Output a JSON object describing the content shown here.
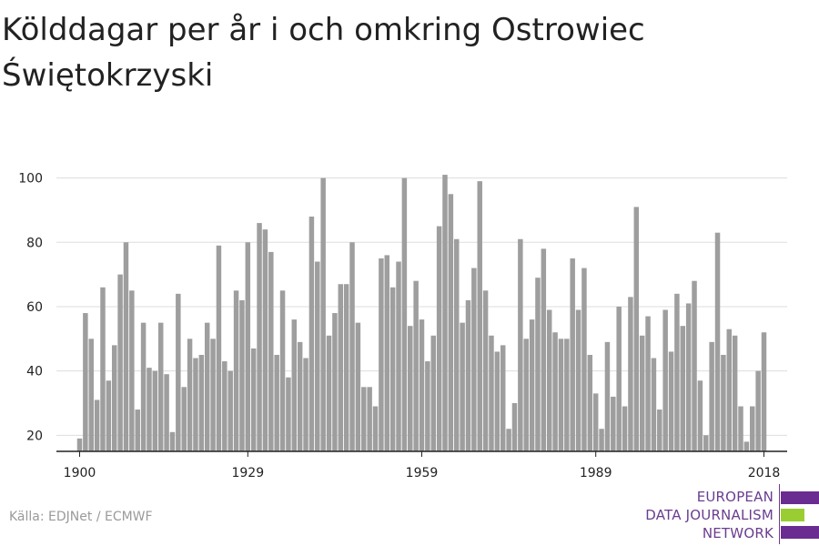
{
  "title": "Kölddagar per år i och omkring Ostrowiec Świętokrzyski",
  "source": "Källa: EDJNet / ECMWF",
  "logo": {
    "lines": [
      "EUROPEAN",
      "DATA JOURNALISM",
      "NETWORK"
    ],
    "purple": "#6a2c91",
    "green": "#9acd32"
  },
  "colors": {
    "bar": "#9e9e9e",
    "grid": "#dddddd",
    "axis": "#222222"
  },
  "chart_data": {
    "type": "bar",
    "title": "Kölddagar per år i och omkring Ostrowiec Świętokrzyski",
    "xlabel": "",
    "ylabel": "",
    "ylim": [
      15,
      103
    ],
    "xlim": [
      1896,
      2022
    ],
    "x_ticks": [
      1900,
      1929,
      1959,
      1989,
      2018
    ],
    "y_ticks": [
      20,
      40,
      60,
      80,
      100
    ],
    "grid": true,
    "years": [
      1900,
      1901,
      1902,
      1903,
      1904,
      1905,
      1906,
      1907,
      1908,
      1909,
      1910,
      1911,
      1912,
      1913,
      1914,
      1915,
      1916,
      1917,
      1918,
      1919,
      1920,
      1921,
      1922,
      1923,
      1924,
      1925,
      1926,
      1927,
      1928,
      1929,
      1930,
      1931,
      1932,
      1933,
      1934,
      1935,
      1936,
      1937,
      1938,
      1939,
      1940,
      1941,
      1942,
      1943,
      1944,
      1945,
      1946,
      1947,
      1948,
      1949,
      1950,
      1951,
      1952,
      1953,
      1954,
      1955,
      1956,
      1957,
      1958,
      1959,
      1960,
      1961,
      1962,
      1963,
      1964,
      1965,
      1966,
      1967,
      1968,
      1969,
      1970,
      1971,
      1972,
      1973,
      1974,
      1975,
      1976,
      1977,
      1978,
      1979,
      1980,
      1981,
      1982,
      1983,
      1984,
      1985,
      1986,
      1987,
      1988,
      1989,
      1990,
      1991,
      1992,
      1993,
      1994,
      1995,
      1996,
      1997,
      1998,
      1999,
      2000,
      2001,
      2002,
      2003,
      2004,
      2005,
      2006,
      2007,
      2008,
      2009,
      2010,
      2011,
      2012,
      2013,
      2014,
      2015,
      2016,
      2017,
      2018
    ],
    "values": [
      19,
      58,
      50,
      31,
      66,
      37,
      48,
      70,
      80,
      65,
      28,
      55,
      41,
      40,
      55,
      39,
      21,
      64,
      35,
      50,
      44,
      45,
      55,
      50,
      79,
      43,
      40,
      65,
      62,
      80,
      47,
      86,
      84,
      77,
      45,
      65,
      38,
      56,
      49,
      44,
      88,
      74,
      100,
      51,
      58,
      67,
      67,
      80,
      55,
      35,
      35,
      29,
      75,
      76,
      66,
      74,
      100,
      54,
      68,
      56,
      43,
      51,
      85,
      101,
      95,
      81,
      55,
      62,
      72,
      99,
      65,
      51,
      46,
      48,
      22,
      30,
      81,
      50,
      56,
      69,
      78,
      59,
      52,
      50,
      50,
      75,
      59,
      72,
      45,
      33,
      22,
      49,
      32,
      60,
      29,
      63,
      91,
      51,
      57,
      44,
      28,
      59,
      46,
      64,
      54,
      61,
      68,
      37,
      20,
      49,
      83,
      45,
      53,
      51,
      29,
      18,
      29,
      40,
      52
    ]
  }
}
